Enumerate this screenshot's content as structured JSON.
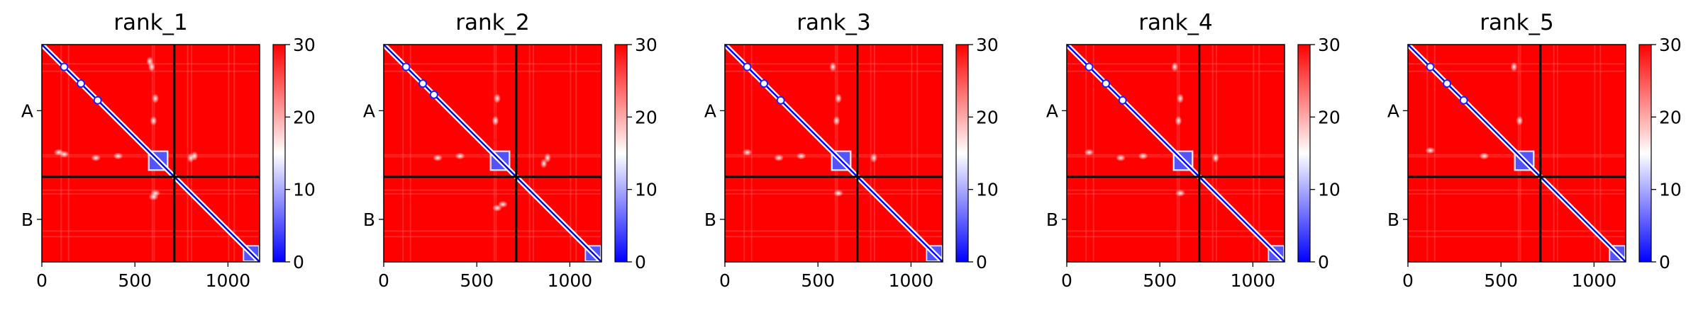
{
  "chart_data": [
    {
      "type": "heatmap",
      "title": "rank_1",
      "xlim": [
        0,
        1170
      ],
      "x_ticks": [
        "0",
        "500",
        "1000"
      ],
      "y_ticks": [
        "A",
        "B"
      ],
      "chain_boundary": 712,
      "colorbar": {
        "min": 0,
        "max": 30,
        "ticks": [
          "0",
          "10",
          "20",
          "30"
        ],
        "colormap": "bwr"
      },
      "low_blocks": [
        [
          570,
          680
        ],
        [
          1080,
          1170
        ]
      ],
      "diag_spots": [
        120,
        210,
        300
      ],
      "offdiag_spots": [
        [
          580,
          90
        ],
        [
          590,
          120
        ],
        [
          610,
          290
        ],
        [
          600,
          410
        ],
        [
          800,
          610
        ],
        [
          820,
          600
        ]
      ]
    },
    {
      "type": "heatmap",
      "title": "rank_2",
      "xlim": [
        0,
        1170
      ],
      "x_ticks": [
        "0",
        "500",
        "1000"
      ],
      "y_ticks": [
        "A",
        "B"
      ],
      "chain_boundary": 712,
      "colorbar": {
        "min": 0,
        "max": 30,
        "ticks": [
          "0",
          "10",
          "20",
          "30"
        ],
        "colormap": "bwr"
      },
      "low_blocks": [
        [
          570,
          680
        ],
        [
          1080,
          1170
        ]
      ],
      "diag_spots": [
        120,
        210,
        270
      ],
      "offdiag_spots": [
        [
          600,
          410
        ],
        [
          610,
          290
        ],
        [
          860,
          640
        ],
        [
          880,
          610
        ]
      ]
    },
    {
      "type": "heatmap",
      "title": "rank_3",
      "xlim": [
        0,
        1170
      ],
      "x_ticks": [
        "0",
        "500",
        "1000"
      ],
      "y_ticks": [
        "A",
        "B"
      ],
      "chain_boundary": 712,
      "colorbar": {
        "min": 0,
        "max": 30,
        "ticks": [
          "0",
          "10",
          "20",
          "30"
        ],
        "colormap": "bwr"
      },
      "low_blocks": [
        [
          570,
          680
        ],
        [
          1080,
          1170
        ]
      ],
      "diag_spots": [
        120,
        210,
        300
      ],
      "offdiag_spots": [
        [
          580,
          120
        ],
        [
          610,
          290
        ],
        [
          600,
          410
        ],
        [
          800,
          610
        ]
      ]
    },
    {
      "type": "heatmap",
      "title": "rank_4",
      "xlim": [
        0,
        1170
      ],
      "x_ticks": [
        "0",
        "500",
        "1000"
      ],
      "y_ticks": [
        "A",
        "B"
      ],
      "chain_boundary": 712,
      "colorbar": {
        "min": 0,
        "max": 30,
        "ticks": [
          "0",
          "10",
          "20",
          "30"
        ],
        "colormap": "bwr"
      },
      "low_blocks": [
        [
          570,
          680
        ],
        [
          1080,
          1170
        ]
      ],
      "diag_spots": [
        120,
        210,
        300
      ],
      "offdiag_spots": [
        [
          580,
          120
        ],
        [
          610,
          290
        ],
        [
          600,
          410
        ],
        [
          800,
          610
        ]
      ]
    },
    {
      "type": "heatmap",
      "title": "rank_5",
      "xlim": [
        0,
        1170
      ],
      "x_ticks": [
        "0",
        "500",
        "1000"
      ],
      "y_ticks": [
        "A",
        "B"
      ],
      "chain_boundary": 712,
      "colorbar": {
        "min": 0,
        "max": 30,
        "ticks": [
          "0",
          "10",
          "20",
          "30"
        ],
        "colormap": "bwr"
      },
      "low_blocks": [
        [
          570,
          680
        ],
        [
          1080,
          1170
        ]
      ],
      "diag_spots": [
        120,
        210,
        300
      ],
      "offdiag_spots": [
        [
          570,
          120
        ],
        [
          600,
          410
        ]
      ]
    }
  ]
}
